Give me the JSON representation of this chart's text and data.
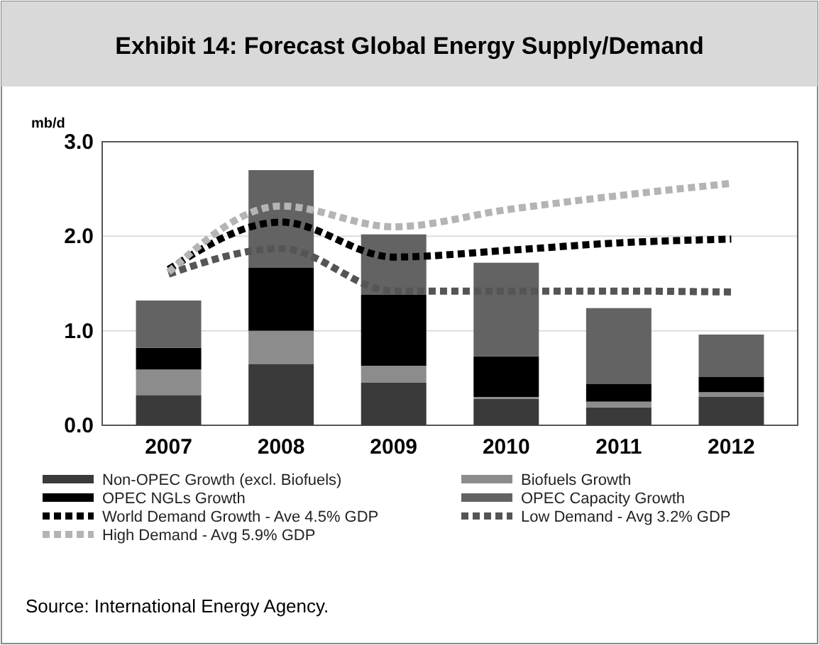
{
  "chart_data": {
    "type": "bar",
    "title": "Exhibit 14: Forecast Global Energy Supply/Demand",
    "ylabel": "mb/d",
    "categories": [
      "2007",
      "2008",
      "2009",
      "2010",
      "2011",
      "2012"
    ],
    "stacked": true,
    "series": [
      {
        "name": "Non-OPEC Growth (excl. Biofuels)",
        "color": "#3a3a3a",
        "values": [
          0.32,
          0.65,
          0.45,
          0.28,
          0.19,
          0.3
        ]
      },
      {
        "name": "Biofuels Growth",
        "color": "#8c8c8c",
        "values": [
          0.27,
          0.35,
          0.18,
          0.02,
          0.06,
          0.05
        ]
      },
      {
        "name": "OPEC NGLs Growth",
        "color": "#000000",
        "values": [
          0.23,
          0.67,
          0.75,
          0.43,
          0.19,
          0.16
        ]
      },
      {
        "name": "OPEC Capacity Growth",
        "color": "#636363",
        "values": [
          0.5,
          1.03,
          0.64,
          0.99,
          0.8,
          0.45
        ]
      },
      {
        "name": "World Demand Growth - Ave 4.5% GDP",
        "type": "line",
        "color": "#000000",
        "line_style": "dotted",
        "values": [
          1.65,
          2.15,
          1.78,
          1.85,
          1.93,
          1.97
        ]
      },
      {
        "name": "Low Demand - Avg 3.2% GDP",
        "type": "line",
        "color": "#555555",
        "line_style": "dotted",
        "values": [
          1.6,
          1.87,
          1.42,
          1.42,
          1.42,
          1.41
        ]
      },
      {
        "name": "High Demand - Avg 5.9% GDP",
        "type": "line",
        "color": "#b4b4b4",
        "line_style": "dotted",
        "values": [
          1.62,
          2.32,
          2.1,
          2.28,
          2.43,
          2.56
        ]
      }
    ],
    "ylim": [
      0,
      3
    ],
    "yticks": [
      {
        "value": 0,
        "label": "0.0"
      },
      {
        "value": 1,
        "label": "1.0"
      },
      {
        "value": 2,
        "label": "2.0"
      },
      {
        "value": 3,
        "label": "3.0"
      }
    ],
    "grid": "y",
    "legend": "bottom",
    "marker": "none",
    "annotations": [
      "Source: International Energy Agency."
    ]
  }
}
